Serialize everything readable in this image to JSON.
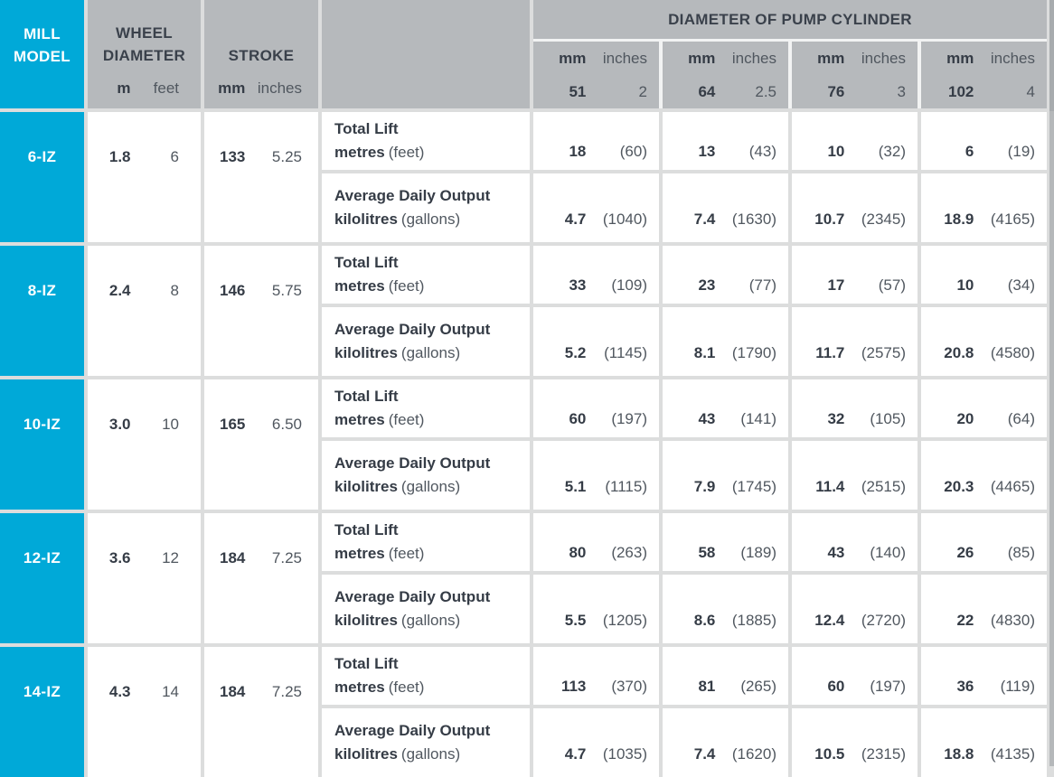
{
  "colors": {
    "accent_cyan": "#00a9d8",
    "header_gray": "#b6b9bc",
    "divider": "#dcdddd",
    "text_bold": "#353c46",
    "text_regular": "#50575f"
  },
  "header": {
    "mill_model": "MILL MODEL",
    "wheel": {
      "title": "WHEEL DIAMETER",
      "unit_a": "m",
      "unit_b": "feet"
    },
    "stroke": {
      "title": "STROKE",
      "unit_a": "mm",
      "unit_b": "inches"
    },
    "pump": {
      "title": "DIAMETER OF PUMP CYLINDER",
      "cols": [
        {
          "unit_a": "mm",
          "unit_b": "inches",
          "size_a": "51",
          "size_b": "2"
        },
        {
          "unit_a": "mm",
          "unit_b": "inches",
          "size_a": "64",
          "size_b": "2.5"
        },
        {
          "unit_a": "mm",
          "unit_b": "inches",
          "size_a": "76",
          "size_b": "3"
        },
        {
          "unit_a": "mm",
          "unit_b": "inches",
          "size_a": "102",
          "size_b": "4"
        }
      ]
    }
  },
  "row_labels": {
    "lift": {
      "title": "Total Lift",
      "unit_bold": "metres",
      "unit_plain": "(feet)"
    },
    "output": {
      "title": "Average Daily Output",
      "unit_bold": "kilolitres",
      "unit_plain": "(gallons)"
    }
  },
  "rows": [
    {
      "model": "6-IZ",
      "wheel_m": "1.8",
      "wheel_ft": "6",
      "stroke_mm": "133",
      "stroke_in": "5.25",
      "lift": [
        {
          "val": "18",
          "paren": "(60)"
        },
        {
          "val": "13",
          "paren": "(43)"
        },
        {
          "val": "10",
          "paren": "(32)"
        },
        {
          "val": "6",
          "paren": "(19)"
        }
      ],
      "output": [
        {
          "val": "4.7",
          "paren": "(1040)"
        },
        {
          "val": "7.4",
          "paren": "(1630)"
        },
        {
          "val": "10.7",
          "paren": "(2345)"
        },
        {
          "val": "18.9",
          "paren": "(4165)"
        }
      ]
    },
    {
      "model": "8-IZ",
      "wheel_m": "2.4",
      "wheel_ft": "8",
      "stroke_mm": "146",
      "stroke_in": "5.75",
      "lift": [
        {
          "val": "33",
          "paren": "(109)"
        },
        {
          "val": "23",
          "paren": "(77)"
        },
        {
          "val": "17",
          "paren": "(57)"
        },
        {
          "val": "10",
          "paren": "(34)"
        }
      ],
      "output": [
        {
          "val": "5.2",
          "paren": "(1145)"
        },
        {
          "val": "8.1",
          "paren": "(1790)"
        },
        {
          "val": "11.7",
          "paren": "(2575)"
        },
        {
          "val": "20.8",
          "paren": "(4580)"
        }
      ]
    },
    {
      "model": "10-IZ",
      "wheel_m": "3.0",
      "wheel_ft": "10",
      "stroke_mm": "165",
      "stroke_in": "6.50",
      "lift": [
        {
          "val": "60",
          "paren": "(197)"
        },
        {
          "val": "43",
          "paren": "(141)"
        },
        {
          "val": "32",
          "paren": "(105)"
        },
        {
          "val": "20",
          "paren": "(64)"
        }
      ],
      "output": [
        {
          "val": "5.1",
          "paren": "(1115)"
        },
        {
          "val": "7.9",
          "paren": "(1745)"
        },
        {
          "val": "11.4",
          "paren": "(2515)"
        },
        {
          "val": "20.3",
          "paren": "(4465)"
        }
      ]
    },
    {
      "model": "12-IZ",
      "wheel_m": "3.6",
      "wheel_ft": "12",
      "stroke_mm": "184",
      "stroke_in": "7.25",
      "lift": [
        {
          "val": "80",
          "paren": "(263)"
        },
        {
          "val": "58",
          "paren": "(189)"
        },
        {
          "val": "43",
          "paren": "(140)"
        },
        {
          "val": "26",
          "paren": "(85)"
        }
      ],
      "output": [
        {
          "val": "5.5",
          "paren": "(1205)"
        },
        {
          "val": "8.6",
          "paren": "(1885)"
        },
        {
          "val": "12.4",
          "paren": "(2720)"
        },
        {
          "val": "22",
          "paren": "(4830)"
        }
      ]
    },
    {
      "model": "14-IZ",
      "wheel_m": "4.3",
      "wheel_ft": "14",
      "stroke_mm": "184",
      "stroke_in": "7.25",
      "lift": [
        {
          "val": "113",
          "paren": "(370)"
        },
        {
          "val": "81",
          "paren": "(265)"
        },
        {
          "val": "60",
          "paren": "(197)"
        },
        {
          "val": "36",
          "paren": "(119)"
        }
      ],
      "output": [
        {
          "val": "4.7",
          "paren": "(1035)"
        },
        {
          "val": "7.4",
          "paren": "(1620)"
        },
        {
          "val": "10.5",
          "paren": "(2315)"
        },
        {
          "val": "18.8",
          "paren": "(4135)"
        }
      ]
    }
  ]
}
